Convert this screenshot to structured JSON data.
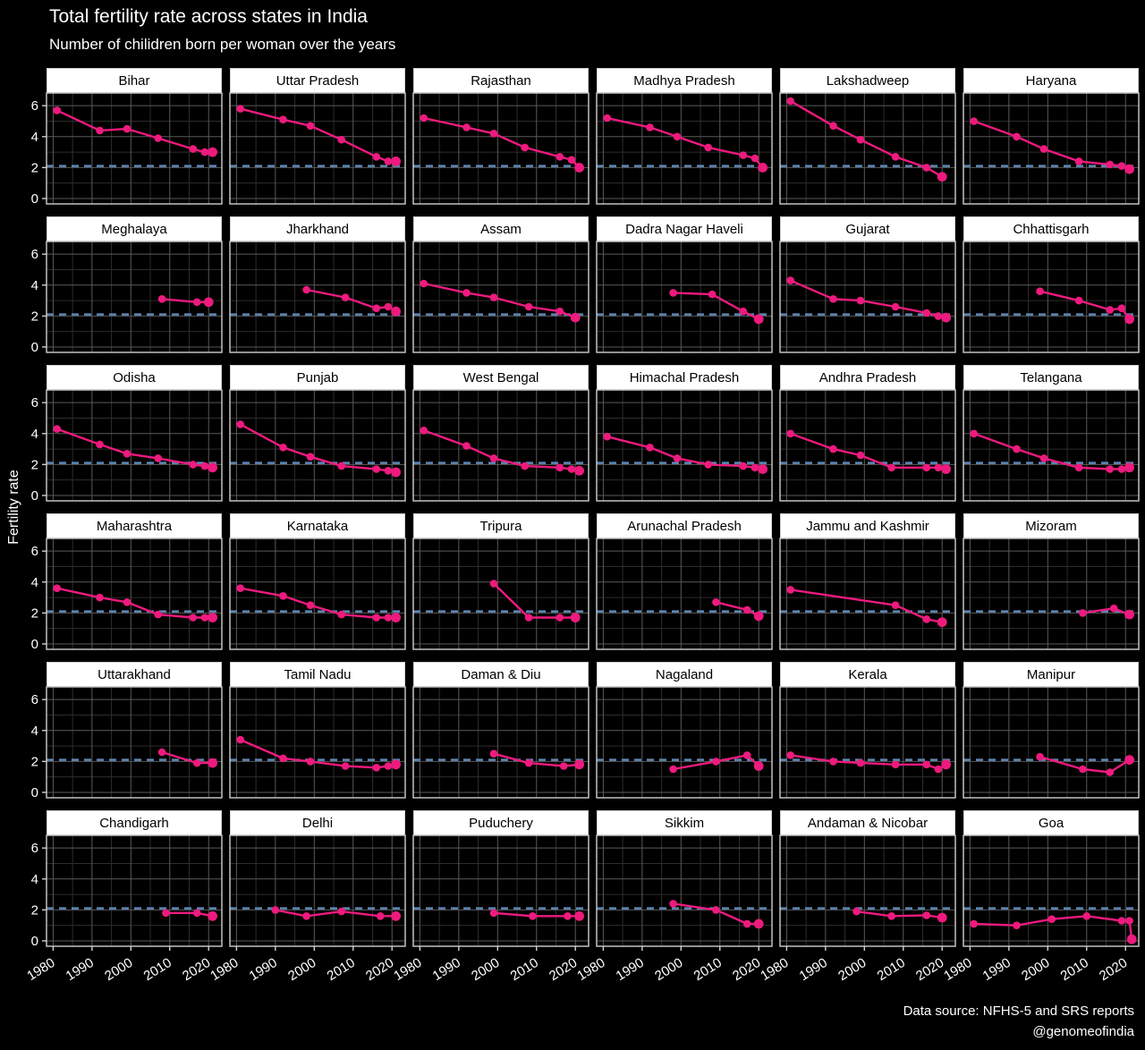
{
  "header": {
    "title": "Total fertility rate across states in India",
    "subtitle": "Number of chilidren born per woman over the years"
  },
  "ylabel": "Fertility rate",
  "footer": {
    "line1": "Data source: NFHS-5 and SRS reports",
    "line2": "@genomeofindia"
  },
  "colors": {
    "background": "#000000",
    "line": "#EE1A7E",
    "replacement_line": "#5F8AB8",
    "panel_header_bg": "#FFFFFF",
    "panel_header_text": "#000000",
    "grid_major": "#5A5A5A",
    "grid_minor": "#2D2D2D",
    "panel_border": "#CFCFCF",
    "text": "#FFFFFF"
  },
  "chart_data": {
    "type": "line",
    "title": "Total fertility rate across states in India",
    "subtitle": "Number of chilidren born per woman over the years",
    "ylabel": "Fertility rate",
    "grid": true,
    "x_ticks": [
      1980,
      1990,
      2000,
      2010,
      2020
    ],
    "y_ticks": [
      0,
      2,
      4,
      6
    ],
    "x_minor": [
      1985,
      1995,
      2005,
      2015
    ],
    "y_minor": [
      1,
      3,
      5
    ],
    "x_domain": [
      1978.3,
      2023.4
    ],
    "y_domain": [
      -0.35,
      6.82
    ],
    "replacement_level": 2.1,
    "facets": [
      {
        "state": "Bihar",
        "points": [
          [
            1981,
            5.7
          ],
          [
            1992,
            4.4
          ],
          [
            1999,
            4.5
          ],
          [
            2007,
            3.9
          ],
          [
            2016,
            3.2
          ],
          [
            2019,
            3.0
          ],
          [
            2021,
            3.0
          ]
        ]
      },
      {
        "state": "Uttar Pradesh",
        "points": [
          [
            1981,
            5.8
          ],
          [
            1992,
            5.1
          ],
          [
            1999,
            4.7
          ],
          [
            2007,
            3.8
          ],
          [
            2016,
            2.7
          ],
          [
            2019,
            2.4
          ],
          [
            2021,
            2.4
          ]
        ]
      },
      {
        "state": "Rajasthan",
        "points": [
          [
            1981,
            5.2
          ],
          [
            1992,
            4.6
          ],
          [
            1999,
            4.2
          ],
          [
            2007,
            3.3
          ],
          [
            2016,
            2.7
          ],
          [
            2019,
            2.5
          ],
          [
            2021,
            2.0
          ]
        ]
      },
      {
        "state": "Madhya Pradesh",
        "points": [
          [
            1981,
            5.2
          ],
          [
            1992,
            4.6
          ],
          [
            1999,
            4.0
          ],
          [
            2007,
            3.3
          ],
          [
            2016,
            2.8
          ],
          [
            2019,
            2.6
          ],
          [
            2021,
            2.0
          ]
        ]
      },
      {
        "state": "Lakshadweep",
        "points": [
          [
            1981,
            6.3
          ],
          [
            1992,
            4.7
          ],
          [
            1999,
            3.8
          ],
          [
            2008,
            2.7
          ],
          [
            2016,
            2.0
          ],
          [
            2020,
            1.4
          ]
        ]
      },
      {
        "state": "Haryana",
        "points": [
          [
            1981,
            5.0
          ],
          [
            1992,
            4.0
          ],
          [
            1999,
            3.2
          ],
          [
            2008,
            2.4
          ],
          [
            2016,
            2.2
          ],
          [
            2019,
            2.1
          ],
          [
            2021,
            1.9
          ]
        ]
      },
      {
        "state": "Meghalaya",
        "points": [
          [
            2008,
            3.1
          ],
          [
            2017,
            2.9
          ],
          [
            2020,
            2.9
          ]
        ]
      },
      {
        "state": "Jharkhand",
        "points": [
          [
            1998,
            3.7
          ],
          [
            2008,
            3.2
          ],
          [
            2016,
            2.5
          ],
          [
            2019,
            2.6
          ],
          [
            2021,
            2.3
          ]
        ]
      },
      {
        "state": "Assam",
        "points": [
          [
            1981,
            4.1
          ],
          [
            1992,
            3.5
          ],
          [
            1999,
            3.2
          ],
          [
            2008,
            2.6
          ],
          [
            2016,
            2.3
          ],
          [
            2020,
            1.9
          ]
        ]
      },
      {
        "state": "Dadra Nagar Haveli",
        "points": [
          [
            1998,
            3.5
          ],
          [
            2008,
            3.4
          ],
          [
            2016,
            2.3
          ],
          [
            2020,
            1.8
          ]
        ]
      },
      {
        "state": "Gujarat",
        "points": [
          [
            1981,
            4.3
          ],
          [
            1992,
            3.1
          ],
          [
            1999,
            3.0
          ],
          [
            2008,
            2.6
          ],
          [
            2016,
            2.2
          ],
          [
            2019,
            2.0
          ],
          [
            2021,
            1.9
          ]
        ]
      },
      {
        "state": "Chhattisgarh",
        "points": [
          [
            1998,
            3.6
          ],
          [
            2008,
            3.0
          ],
          [
            2016,
            2.4
          ],
          [
            2019,
            2.5
          ],
          [
            2021,
            1.8
          ]
        ]
      },
      {
        "state": "Odisha",
        "points": [
          [
            1981,
            4.3
          ],
          [
            1992,
            3.3
          ],
          [
            1999,
            2.7
          ],
          [
            2007,
            2.4
          ],
          [
            2016,
            2.0
          ],
          [
            2019,
            1.9
          ],
          [
            2021,
            1.8
          ]
        ]
      },
      {
        "state": "Punjab",
        "points": [
          [
            1981,
            4.6
          ],
          [
            1992,
            3.1
          ],
          [
            1999,
            2.5
          ],
          [
            2007,
            1.9
          ],
          [
            2016,
            1.7
          ],
          [
            2019,
            1.6
          ],
          [
            2021,
            1.5
          ]
        ]
      },
      {
        "state": "West Bengal",
        "points": [
          [
            1981,
            4.2
          ],
          [
            1992,
            3.2
          ],
          [
            1999,
            2.4
          ],
          [
            2007,
            1.9
          ],
          [
            2016,
            1.8
          ],
          [
            2019,
            1.7
          ],
          [
            2021,
            1.6
          ]
        ]
      },
      {
        "state": "Himachal Pradesh",
        "points": [
          [
            1981,
            3.8
          ],
          [
            1992,
            3.1
          ],
          [
            1999,
            2.4
          ],
          [
            2007,
            2.0
          ],
          [
            2016,
            1.9
          ],
          [
            2019,
            1.8
          ],
          [
            2021,
            1.7
          ]
        ]
      },
      {
        "state": "Andhra Pradesh",
        "points": [
          [
            1981,
            4.0
          ],
          [
            1992,
            3.0
          ],
          [
            1999,
            2.6
          ],
          [
            2007,
            1.8
          ],
          [
            2016,
            1.8
          ],
          [
            2019,
            1.8
          ],
          [
            2021,
            1.7
          ]
        ]
      },
      {
        "state": "Telangana",
        "points": [
          [
            1981,
            4.0
          ],
          [
            1992,
            3.0
          ],
          [
            1999,
            2.4
          ],
          [
            2008,
            1.8
          ],
          [
            2016,
            1.7
          ],
          [
            2019,
            1.7
          ],
          [
            2021,
            1.8
          ]
        ]
      },
      {
        "state": "Maharashtra",
        "points": [
          [
            1981,
            3.6
          ],
          [
            1992,
            3.0
          ],
          [
            1999,
            2.7
          ],
          [
            2007,
            1.9
          ],
          [
            2016,
            1.7
          ],
          [
            2019,
            1.7
          ],
          [
            2021,
            1.7
          ]
        ]
      },
      {
        "state": "Karnataka",
        "points": [
          [
            1981,
            3.6
          ],
          [
            1992,
            3.1
          ],
          [
            1999,
            2.5
          ],
          [
            2007,
            1.9
          ],
          [
            2016,
            1.7
          ],
          [
            2019,
            1.7
          ],
          [
            2021,
            1.7
          ]
        ]
      },
      {
        "state": "Tripura",
        "points": [
          [
            1999,
            3.9
          ],
          [
            2008,
            1.7
          ],
          [
            2016,
            1.7
          ],
          [
            2020,
            1.7
          ]
        ]
      },
      {
        "state": "Arunachal Pradesh",
        "points": [
          [
            2009,
            2.7
          ],
          [
            2017,
            2.2
          ],
          [
            2020,
            1.8
          ]
        ]
      },
      {
        "state": "Jammu and Kashmir",
        "points": [
          [
            1981,
            3.5
          ],
          [
            2008,
            2.5
          ],
          [
            2016,
            1.6
          ],
          [
            2020,
            1.4
          ]
        ]
      },
      {
        "state": "Mizoram",
        "points": [
          [
            2009,
            2.0
          ],
          [
            2017,
            2.3
          ],
          [
            2021,
            1.9
          ]
        ]
      },
      {
        "state": "Uttarakhand",
        "points": [
          [
            2008,
            2.6
          ],
          [
            2017,
            1.9
          ],
          [
            2021,
            1.9
          ]
        ]
      },
      {
        "state": "Tamil Nadu",
        "points": [
          [
            1981,
            3.4
          ],
          [
            1992,
            2.2
          ],
          [
            1999,
            2.0
          ],
          [
            2008,
            1.7
          ],
          [
            2016,
            1.6
          ],
          [
            2019,
            1.7
          ],
          [
            2021,
            1.8
          ]
        ]
      },
      {
        "state": "Daman & Diu",
        "points": [
          [
            1999,
            2.5
          ],
          [
            2008,
            1.9
          ],
          [
            2017,
            1.7
          ],
          [
            2021,
            1.8
          ]
        ]
      },
      {
        "state": "Nagaland",
        "points": [
          [
            1998,
            1.5
          ],
          [
            2009,
            2.0
          ],
          [
            2017,
            2.4
          ],
          [
            2020,
            1.7
          ]
        ]
      },
      {
        "state": "Kerala",
        "points": [
          [
            1981,
            2.4
          ],
          [
            1992,
            2.0
          ],
          [
            1999,
            1.9
          ],
          [
            2008,
            1.8
          ],
          [
            2016,
            1.8
          ],
          [
            2019,
            1.5
          ],
          [
            2021,
            1.8
          ]
        ]
      },
      {
        "state": "Manipur",
        "points": [
          [
            1998,
            2.3
          ],
          [
            2009,
            1.5
          ],
          [
            2016,
            1.3
          ],
          [
            2021,
            2.1
          ]
        ]
      },
      {
        "state": "Chandigarh",
        "points": [
          [
            2009,
            1.8
          ],
          [
            2017,
            1.8
          ],
          [
            2021,
            1.6
          ]
        ]
      },
      {
        "state": "Delhi",
        "points": [
          [
            1990,
            2.0
          ],
          [
            1998,
            1.6
          ],
          [
            2007,
            1.9
          ],
          [
            2017,
            1.6
          ],
          [
            2021,
            1.6
          ]
        ]
      },
      {
        "state": "Puduchery",
        "points": [
          [
            1999,
            1.8
          ],
          [
            2009,
            1.6
          ],
          [
            2018,
            1.6
          ],
          [
            2021,
            1.6
          ]
        ]
      },
      {
        "state": "Sikkim",
        "points": [
          [
            1998,
            2.4
          ],
          [
            2009,
            2.0
          ],
          [
            2017,
            1.1
          ],
          [
            2020,
            1.1
          ]
        ]
      },
      {
        "state": "Andaman & Nicobar",
        "points": [
          [
            1998,
            1.9
          ],
          [
            2007,
            1.6
          ],
          [
            2016,
            1.65
          ],
          [
            2020,
            1.5
          ]
        ]
      },
      {
        "state": "Goa",
        "points": [
          [
            1981,
            1.1
          ],
          [
            1992,
            1.0
          ],
          [
            2001,
            1.4
          ],
          [
            2010,
            1.6
          ],
          [
            2019,
            1.3
          ],
          [
            2021,
            1.3
          ],
          [
            2021.6,
            0.1
          ]
        ]
      }
    ]
  }
}
